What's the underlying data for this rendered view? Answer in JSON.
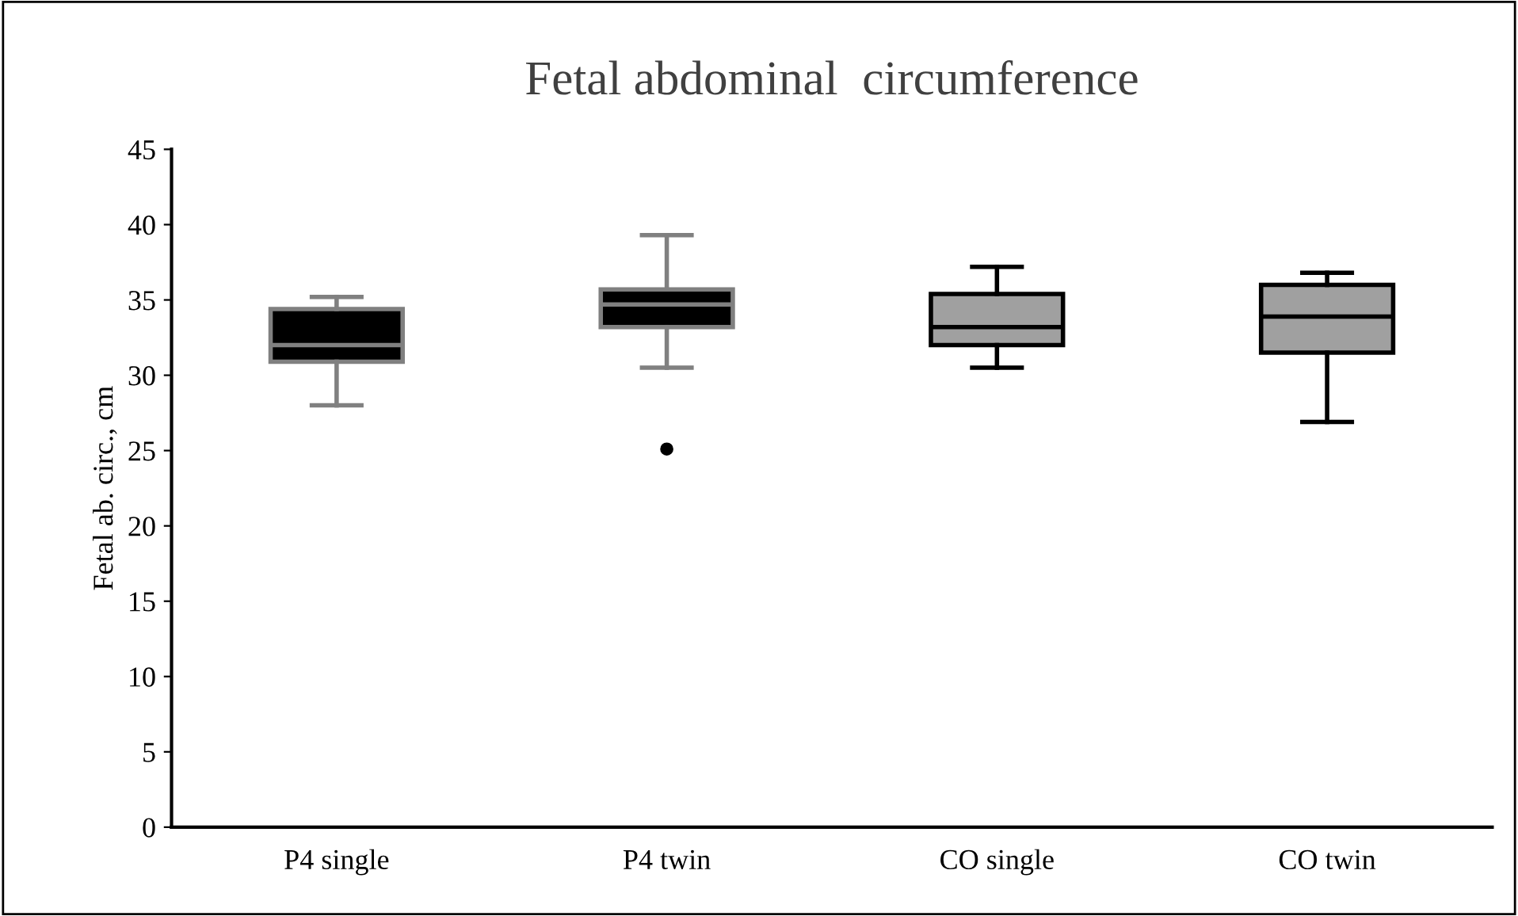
{
  "chart_data": {
    "type": "box",
    "title": "Fetal abdominal  circumference",
    "ylabel": "Fetal ab. circ., cm",
    "categories": [
      "P4 single",
      "P4 twin",
      "CO single",
      "CO twin"
    ],
    "boxes": [
      {
        "low": 28.0,
        "q1": 30.9,
        "median": 32.0,
        "q3": 34.4,
        "high": 35.2
      },
      {
        "low": 30.5,
        "q1": 33.2,
        "median": 34.7,
        "q3": 35.7,
        "high": 39.3,
        "outliers": [
          25.1
        ]
      },
      {
        "low": 30.5,
        "q1": 32.0,
        "median": 33.2,
        "q3": 35.4,
        "high": 37.2
      },
      {
        "low": 26.9,
        "q1": 31.5,
        "median": 33.9,
        "q3": 36.0,
        "high": 36.8
      }
    ],
    "colors": [
      "#000000",
      "#000000",
      "#a0a0a0",
      "#a0a0a0"
    ],
    "ylim": [
      0,
      45
    ],
    "yticks": [
      0,
      5,
      10,
      15,
      20,
      25,
      30,
      35,
      40,
      45
    ],
    "grid": false,
    "legend": false
  }
}
